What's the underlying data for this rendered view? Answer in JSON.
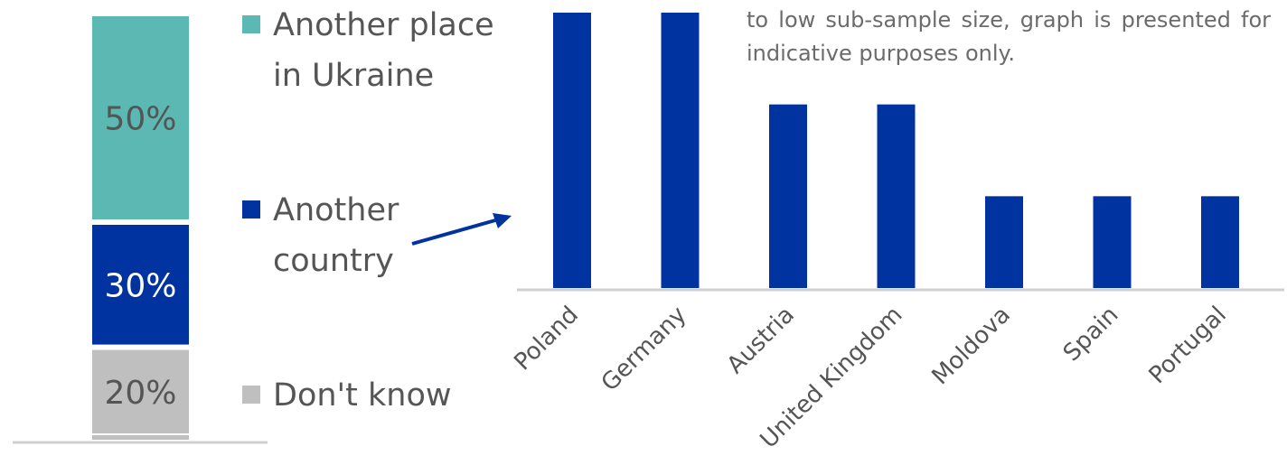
{
  "colors": {
    "teal": "#5cb8b2",
    "navy": "#0033a0",
    "gray": "#bfbfbf",
    "axis": "#d0d0d0",
    "text": "#555555"
  },
  "note": "to low sub-sample size, graph is presented for indicative purposes only.",
  "legend": [
    {
      "label": "Another place\nin Ukraine",
      "color": "#5cb8b2"
    },
    {
      "label": "Another\ncountry",
      "color": "#0033a0"
    },
    {
      "label": "Don't know",
      "color": "#bfbfbf"
    }
  ],
  "chart_data": [
    {
      "type": "bar",
      "stacked": true,
      "categories": [
        ""
      ],
      "series": [
        {
          "name": "Don't know",
          "values": [
            20
          ],
          "label": "20%",
          "color": "#bfbfbf"
        },
        {
          "name": "Another country",
          "values": [
            30
          ],
          "label": "30%",
          "color": "#0033a0"
        },
        {
          "name": "Another place in Ukraine",
          "values": [
            50
          ],
          "label": "50%",
          "color": "#5cb8b2"
        }
      ],
      "ylim": [
        0,
        100
      ]
    },
    {
      "type": "bar",
      "categories": [
        "Poland",
        "Germany",
        "Austria",
        "United Kingdom",
        "Moldova",
        "Spain",
        "Portugal"
      ],
      "values": [
        3,
        3,
        2,
        2,
        1,
        1,
        1
      ],
      "ylim": [
        0,
        3
      ],
      "color": "#0033a0"
    }
  ]
}
